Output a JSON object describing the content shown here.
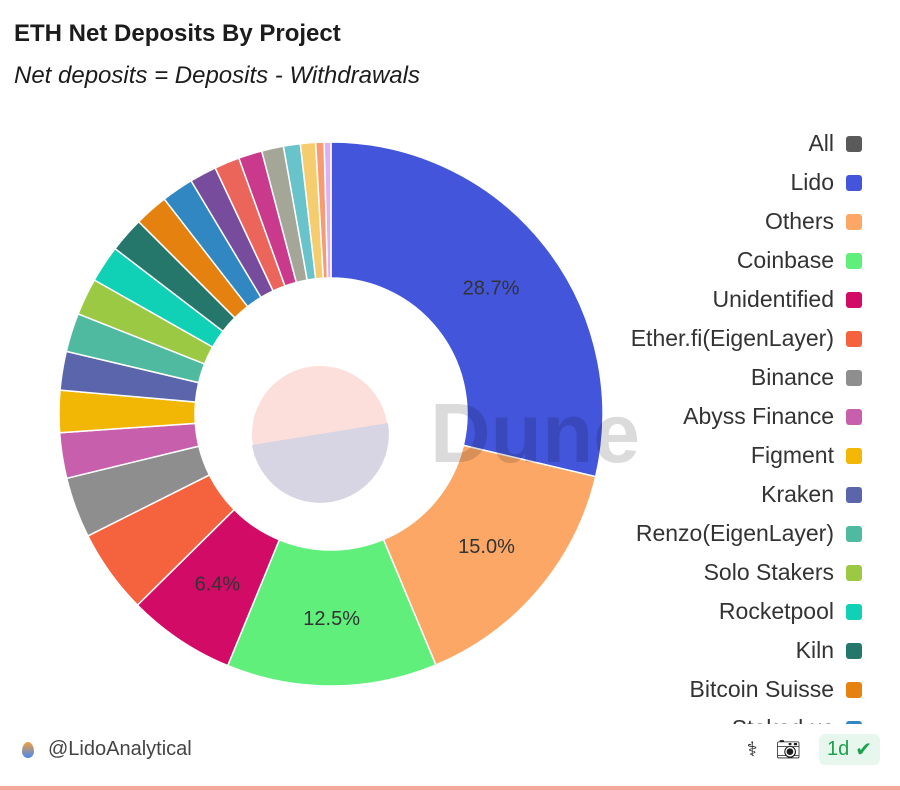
{
  "chart_data": {
    "type": "pie",
    "title": "ETH Net Deposits By Project",
    "subtitle": "Net deposits = Deposits - Withdrawals",
    "watermark": "Dune",
    "slices": [
      {
        "name": "Lido",
        "value": 28.7,
        "color": "#4355db",
        "label": "28.7%"
      },
      {
        "name": "Others",
        "value": 15.0,
        "color": "#fda767",
        "label": "15.0%"
      },
      {
        "name": "Coinbase",
        "value": 12.5,
        "color": "#61ef7c",
        "label": "12.5%"
      },
      {
        "name": "Unidentified",
        "value": 6.4,
        "color": "#d20b67",
        "label": "6.4%"
      },
      {
        "name": "Ether.fi(EigenLayer)",
        "value": 5.0,
        "color": "#f4623e"
      },
      {
        "name": "Binance",
        "value": 3.6,
        "color": "#8e8e8e"
      },
      {
        "name": "Abyss Finance",
        "value": 2.7,
        "color": "#c85fad"
      },
      {
        "name": "Figment",
        "value": 2.5,
        "color": "#f2b705"
      },
      {
        "name": "Kraken",
        "value": 2.3,
        "color": "#5b65ac"
      },
      {
        "name": "Renzo(EigenLayer)",
        "value": 2.3,
        "color": "#50baa0"
      },
      {
        "name": "Solo Stakers",
        "value": 2.2,
        "color": "#9cc944"
      },
      {
        "name": "Rocketpool",
        "value": 2.2,
        "color": "#10d1b5"
      },
      {
        "name": "Kiln",
        "value": 2.1,
        "color": "#24776a"
      },
      {
        "name": "Bitcoin Suisse",
        "value": 2.0,
        "color": "#e5820f"
      },
      {
        "name": "Staked.us",
        "value": 1.9,
        "color": "#3087c2"
      },
      {
        "value": 1.6,
        "color": "#774c9c"
      },
      {
        "value": 1.5,
        "color": "#ec655b"
      },
      {
        "value": 1.4,
        "color": "#c93a8c"
      },
      {
        "value": 1.3,
        "color": "#a4a797"
      },
      {
        "value": 1.0,
        "color": "#69c3cb"
      },
      {
        "value": 0.9,
        "color": "#f5cc6e"
      },
      {
        "value": 0.5,
        "color": "#f79b72"
      },
      {
        "value": 0.4,
        "color": "#dcb0f2"
      }
    ],
    "legend": [
      {
        "name": "All",
        "color": "#5a5a5a"
      },
      {
        "name": "Lido",
        "color": "#4355db"
      },
      {
        "name": "Others",
        "color": "#fda767"
      },
      {
        "name": "Coinbase",
        "color": "#61ef7c"
      },
      {
        "name": "Unidentified",
        "color": "#d20b67"
      },
      {
        "name": "Ether.fi(EigenLayer)",
        "color": "#f4623e"
      },
      {
        "name": "Binance",
        "color": "#8e8e8e"
      },
      {
        "name": "Abyss Finance",
        "color": "#c85fad"
      },
      {
        "name": "Figment",
        "color": "#f2b705"
      },
      {
        "name": "Kraken",
        "color": "#5b65ac"
      },
      {
        "name": "Renzo(EigenLayer)",
        "color": "#50baa0"
      },
      {
        "name": "Solo Stakers",
        "color": "#9cc944"
      },
      {
        "name": "Rocketpool",
        "color": "#10d1b5"
      },
      {
        "name": "Kiln",
        "color": "#24776a"
      },
      {
        "name": "Bitcoin Suisse",
        "color": "#e5820f"
      },
      {
        "name": "Staked.us",
        "color": "#3087c2"
      }
    ],
    "legend_position": "right"
  },
  "footer": {
    "author": "@LidoAnalytical",
    "refresh": "1d"
  }
}
